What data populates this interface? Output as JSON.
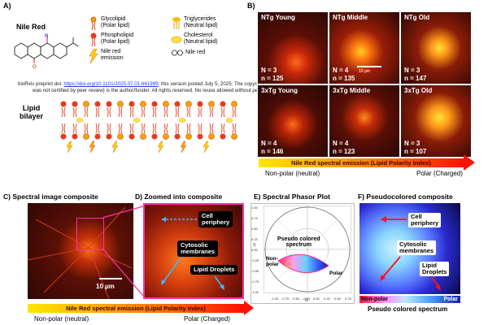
{
  "panel_a": {
    "label": "A)",
    "dye_name": "Nile Red",
    "legend": [
      {
        "icon": "glycolipid-icon",
        "text": "Glycolipid\n(Polar lipid)"
      },
      {
        "icon": "phospholipid-icon",
        "text": "Phospholipid\n(Polar lipid)"
      },
      {
        "icon": "emission-icon",
        "text": "Nile red\nemission"
      },
      {
        "icon": "triglyceride-icon",
        "text": "Triglycerides\n(Neutral lipid)"
      },
      {
        "icon": "cholesterol-icon",
        "text": "Cholesterol\n(Neutral lipid)"
      },
      {
        "icon": "nile-red-icon",
        "text": "Nile red"
      }
    ],
    "bilayer_label": "Lipid\nbilayer"
  },
  "watermark": {
    "prefix": "bioRxiv preprint doi: ",
    "link": "https://doi.org/10.1101/2025.07.01.661999",
    "suffix": "; this version posted July 5, 2025. The copyright holder for this preprint (which",
    "line2": "was not certified by peer review) is the author/funder. All rights reserved. No reuse allowed without permission."
  },
  "panel_b": {
    "label": "B)",
    "scale_bar": "10 µm",
    "tiles": [
      {
        "title": "NTg Young",
        "n": "N = 3",
        "count": "n = 125"
      },
      {
        "title": "NTg Middle",
        "n": "N = 4",
        "count": "n = 135"
      },
      {
        "title": "NTg Old",
        "n": "N = 3",
        "count": "n = 147"
      },
      {
        "title": "3xTg Young",
        "n": "N = 4",
        "count": "n = 146"
      },
      {
        "title": "3xTg Middle",
        "n": "N = 4",
        "count": "n = 123"
      },
      {
        "title": "3xTg Old",
        "n": "N = 3",
        "count": "n = 107"
      }
    ],
    "gradient_label": "Nile Red spectral emission (Lipid Polarity Index)",
    "left_end": "Non-polar (neutral)",
    "right_end": "Polar (Charged)"
  },
  "panel_c": {
    "label": "C)",
    "title": "Spectral image composite",
    "scale_bar": "10 µm"
  },
  "panel_d": {
    "label": "D)",
    "title": "Zoomed into composite",
    "callouts": [
      "Cell\nperiphery",
      "Cytosolic\nmembranes",
      "Lipid Droplets"
    ]
  },
  "panel_e": {
    "label": "E)",
    "title": "Spectral Phasor Plot",
    "inner_label": "Pseudo colored\nspectrum",
    "left_tag": "Non-\npolar",
    "right_tag": "Polar",
    "y_ticks": [
      "1.00",
      "0.75",
      "0.50",
      "0.25",
      "0.00",
      "-0.25",
      "-0.50",
      "-0.75",
      "-1.00"
    ],
    "x_ticks": [
      "-1.00",
      "-0.75",
      "-0.50",
      "-0.25",
      "0.00",
      "0.25",
      "0.50",
      "0.75",
      "1.00"
    ],
    "x_axis": "G",
    "y_axis": "S"
  },
  "panel_f": {
    "label": "F)",
    "title": "Pseudocolored composite",
    "callouts": [
      "Cell\nperiphery",
      "Cytosolic\nmembranes",
      "Lipid\nDroplets"
    ],
    "bar_left": "Non-polar",
    "bar_right": "Polar",
    "bar_caption": "Pseudo colored spectrum"
  },
  "bottom": {
    "gradient_label": "Nile Red spectral emission (Lipid Polarity Index)",
    "left_end": "Non-polar (neutral)",
    "right_end": "Polar (Charged)"
  }
}
